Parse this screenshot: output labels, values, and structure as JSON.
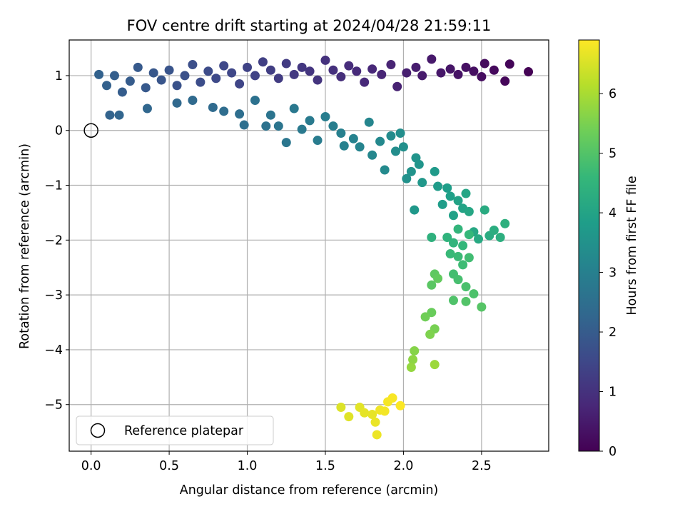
{
  "chart_data": {
    "type": "scatter",
    "title": "FOV centre drift starting at 2024/04/28 21:59:11",
    "xlabel": "Angular distance from reference (arcmin)",
    "ylabel": "Rotation from reference (arcmin)",
    "xlim": [
      -0.14,
      2.93
    ],
    "ylim": [
      -5.85,
      1.65
    ],
    "xticks": [
      0.0,
      0.5,
      1.0,
      1.5,
      2.0,
      2.5
    ],
    "xtick_labels": [
      "0.0",
      "0.5",
      "1.0",
      "1.5",
      "2.0",
      "2.5"
    ],
    "yticks": [
      1,
      0,
      -1,
      -2,
      -3,
      -4,
      -5
    ],
    "ytick_labels": [
      "1",
      "0",
      "−1",
      "−2",
      "−3",
      "−4",
      "−5"
    ],
    "grid": true,
    "legend": {
      "position": "lower-left",
      "entries": [
        "Reference platepar"
      ]
    },
    "reference_point": {
      "x": 0.0,
      "y": 0.0
    },
    "colorbar": {
      "label": "Hours from first FF file",
      "colormap": "viridis",
      "range": [
        0,
        6.9
      ],
      "ticks": [
        0,
        1,
        2,
        3,
        4,
        5,
        6
      ],
      "tick_labels": [
        "0",
        "1",
        "2",
        "3",
        "4",
        "5",
        "6"
      ]
    },
    "colors": {
      "viridis": [
        "#440154",
        "#482878",
        "#3e4989",
        "#31688e",
        "#26828e",
        "#1f9e89",
        "#35b779",
        "#6ece58",
        "#b5de2b",
        "#fde725"
      ]
    },
    "points": [
      {
        "x": 2.8,
        "y": 1.07,
        "t": 0.03
      },
      {
        "x": 2.68,
        "y": 1.21,
        "t": 0.08
      },
      {
        "x": 2.65,
        "y": 0.9,
        "t": 0.12
      },
      {
        "x": 2.58,
        "y": 1.1,
        "t": 0.16
      },
      {
        "x": 2.52,
        "y": 1.22,
        "t": 0.2
      },
      {
        "x": 2.5,
        "y": 0.98,
        "t": 0.24
      },
      {
        "x": 2.45,
        "y": 1.08,
        "t": 0.28
      },
      {
        "x": 2.4,
        "y": 1.15,
        "t": 0.32
      },
      {
        "x": 2.35,
        "y": 1.02,
        "t": 0.36
      },
      {
        "x": 2.3,
        "y": 1.12,
        "t": 0.4
      },
      {
        "x": 2.24,
        "y": 1.05,
        "t": 0.44
      },
      {
        "x": 2.18,
        "y": 1.3,
        "t": 0.48
      },
      {
        "x": 2.12,
        "y": 1.0,
        "t": 0.52
      },
      {
        "x": 2.08,
        "y": 1.15,
        "t": 0.56
      },
      {
        "x": 2.02,
        "y": 1.05,
        "t": 0.6
      },
      {
        "x": 1.96,
        "y": 0.8,
        "t": 0.64
      },
      {
        "x": 1.92,
        "y": 1.2,
        "t": 0.68
      },
      {
        "x": 1.86,
        "y": 1.02,
        "t": 0.72
      },
      {
        "x": 1.8,
        "y": 1.12,
        "t": 0.76
      },
      {
        "x": 1.75,
        "y": 0.88,
        "t": 0.8
      },
      {
        "x": 1.7,
        "y": 1.08,
        "t": 0.84
      },
      {
        "x": 1.65,
        "y": 1.18,
        "t": 0.88
      },
      {
        "x": 1.6,
        "y": 0.98,
        "t": 0.92
      },
      {
        "x": 1.55,
        "y": 1.1,
        "t": 0.96
      },
      {
        "x": 1.5,
        "y": 1.28,
        "t": 1.0
      },
      {
        "x": 1.45,
        "y": 0.92,
        "t": 1.04
      },
      {
        "x": 1.4,
        "y": 1.08,
        "t": 1.08
      },
      {
        "x": 1.35,
        "y": 1.15,
        "t": 1.12
      },
      {
        "x": 1.3,
        "y": 1.02,
        "t": 1.16
      },
      {
        "x": 1.25,
        "y": 1.22,
        "t": 1.2
      },
      {
        "x": 1.2,
        "y": 0.95,
        "t": 1.24
      },
      {
        "x": 1.15,
        "y": 1.1,
        "t": 1.28
      },
      {
        "x": 1.1,
        "y": 1.25,
        "t": 1.32
      },
      {
        "x": 1.05,
        "y": 1.0,
        "t": 1.36
      },
      {
        "x": 1.0,
        "y": 1.15,
        "t": 1.4
      },
      {
        "x": 0.95,
        "y": 0.85,
        "t": 1.44
      },
      {
        "x": 0.9,
        "y": 1.05,
        "t": 1.48
      },
      {
        "x": 0.85,
        "y": 1.18,
        "t": 1.52
      },
      {
        "x": 0.8,
        "y": 0.95,
        "t": 1.56
      },
      {
        "x": 0.75,
        "y": 1.08,
        "t": 1.6
      },
      {
        "x": 0.7,
        "y": 0.88,
        "t": 1.64
      },
      {
        "x": 0.65,
        "y": 1.2,
        "t": 1.68
      },
      {
        "x": 0.6,
        "y": 1.0,
        "t": 1.72
      },
      {
        "x": 0.55,
        "y": 0.82,
        "t": 1.76
      },
      {
        "x": 0.5,
        "y": 1.1,
        "t": 1.8
      },
      {
        "x": 0.45,
        "y": 0.92,
        "t": 1.84
      },
      {
        "x": 0.4,
        "y": 1.05,
        "t": 1.88
      },
      {
        "x": 0.35,
        "y": 0.78,
        "t": 1.92
      },
      {
        "x": 0.3,
        "y": 1.15,
        "t": 1.96
      },
      {
        "x": 0.25,
        "y": 0.9,
        "t": 2.0
      },
      {
        "x": 0.2,
        "y": 0.7,
        "t": 2.04
      },
      {
        "x": 0.15,
        "y": 1.0,
        "t": 2.08
      },
      {
        "x": 0.1,
        "y": 0.82,
        "t": 2.12
      },
      {
        "x": 0.05,
        "y": 1.02,
        "t": 2.16
      },
      {
        "x": 0.12,
        "y": 0.28,
        "t": 2.2
      },
      {
        "x": 0.18,
        "y": 0.28,
        "t": 2.24
      },
      {
        "x": 0.36,
        "y": 0.4,
        "t": 2.28
      },
      {
        "x": 0.55,
        "y": 0.5,
        "t": 2.32
      },
      {
        "x": 0.65,
        "y": 0.55,
        "t": 2.36
      },
      {
        "x": 0.78,
        "y": 0.42,
        "t": 2.4
      },
      {
        "x": 0.85,
        "y": 0.35,
        "t": 2.44
      },
      {
        "x": 0.95,
        "y": 0.3,
        "t": 2.48
      },
      {
        "x": 0.98,
        "y": 0.1,
        "t": 2.52
      },
      {
        "x": 1.05,
        "y": 0.55,
        "t": 2.56
      },
      {
        "x": 1.12,
        "y": 0.08,
        "t": 2.6
      },
      {
        "x": 1.15,
        "y": 0.28,
        "t": 2.64
      },
      {
        "x": 1.2,
        "y": 0.08,
        "t": 2.68
      },
      {
        "x": 1.25,
        "y": -0.22,
        "t": 2.72
      },
      {
        "x": 1.3,
        "y": 0.4,
        "t": 2.76
      },
      {
        "x": 1.35,
        "y": 0.02,
        "t": 2.8
      },
      {
        "x": 1.4,
        "y": 0.18,
        "t": 2.84
      },
      {
        "x": 1.45,
        "y": -0.18,
        "t": 2.88
      },
      {
        "x": 1.5,
        "y": 0.25,
        "t": 2.92
      },
      {
        "x": 1.55,
        "y": 0.08,
        "t": 2.96
      },
      {
        "x": 1.6,
        "y": -0.05,
        "t": 3.0
      },
      {
        "x": 1.62,
        "y": -0.28,
        "t": 3.04
      },
      {
        "x": 1.68,
        "y": -0.15,
        "t": 3.08
      },
      {
        "x": 1.72,
        "y": -0.3,
        "t": 3.12
      },
      {
        "x": 1.78,
        "y": 0.15,
        "t": 3.16
      },
      {
        "x": 1.8,
        "y": -0.45,
        "t": 3.2
      },
      {
        "x": 1.85,
        "y": -0.2,
        "t": 3.24
      },
      {
        "x": 1.88,
        "y": -0.72,
        "t": 3.28
      },
      {
        "x": 1.92,
        "y": -0.1,
        "t": 3.32
      },
      {
        "x": 1.95,
        "y": -0.38,
        "t": 3.36
      },
      {
        "x": 1.98,
        "y": -0.05,
        "t": 3.4
      },
      {
        "x": 2.0,
        "y": -0.3,
        "t": 3.44
      },
      {
        "x": 2.02,
        "y": -0.88,
        "t": 3.48
      },
      {
        "x": 2.05,
        "y": -0.75,
        "t": 3.52
      },
      {
        "x": 2.08,
        "y": -0.5,
        "t": 3.56
      },
      {
        "x": 2.1,
        "y": -0.62,
        "t": 3.6
      },
      {
        "x": 2.12,
        "y": -0.95,
        "t": 3.64
      },
      {
        "x": 2.07,
        "y": -1.45,
        "t": 3.68
      },
      {
        "x": 2.2,
        "y": -0.75,
        "t": 3.72
      },
      {
        "x": 2.22,
        "y": -1.02,
        "t": 3.76
      },
      {
        "x": 2.25,
        "y": -1.35,
        "t": 3.8
      },
      {
        "x": 2.28,
        "y": -1.05,
        "t": 3.84
      },
      {
        "x": 2.3,
        "y": -1.2,
        "t": 3.88
      },
      {
        "x": 2.32,
        "y": -1.55,
        "t": 3.92
      },
      {
        "x": 2.35,
        "y": -1.28,
        "t": 3.96
      },
      {
        "x": 2.38,
        "y": -1.42,
        "t": 4.0
      },
      {
        "x": 2.4,
        "y": -1.15,
        "t": 4.04
      },
      {
        "x": 2.42,
        "y": -1.48,
        "t": 4.08
      },
      {
        "x": 2.45,
        "y": -1.85,
        "t": 4.12
      },
      {
        "x": 2.48,
        "y": -1.98,
        "t": 4.16
      },
      {
        "x": 2.52,
        "y": -1.45,
        "t": 4.2
      },
      {
        "x": 2.55,
        "y": -1.92,
        "t": 4.24
      },
      {
        "x": 2.58,
        "y": -1.82,
        "t": 4.28
      },
      {
        "x": 2.62,
        "y": -1.95,
        "t": 4.32
      },
      {
        "x": 2.65,
        "y": -1.7,
        "t": 4.36
      },
      {
        "x": 2.18,
        "y": -1.95,
        "t": 4.4
      },
      {
        "x": 2.28,
        "y": -1.95,
        "t": 4.44
      },
      {
        "x": 2.32,
        "y": -2.05,
        "t": 4.48
      },
      {
        "x": 2.35,
        "y": -1.8,
        "t": 4.52
      },
      {
        "x": 2.38,
        "y": -2.1,
        "t": 4.56
      },
      {
        "x": 2.42,
        "y": -1.9,
        "t": 4.6
      },
      {
        "x": 2.3,
        "y": -2.25,
        "t": 4.64
      },
      {
        "x": 2.35,
        "y": -2.3,
        "t": 4.68
      },
      {
        "x": 2.38,
        "y": -2.45,
        "t": 4.72
      },
      {
        "x": 2.42,
        "y": -2.32,
        "t": 4.76
      },
      {
        "x": 2.32,
        "y": -2.62,
        "t": 4.8
      },
      {
        "x": 2.35,
        "y": -2.72,
        "t": 4.84
      },
      {
        "x": 2.4,
        "y": -2.85,
        "t": 4.88
      },
      {
        "x": 2.45,
        "y": -2.98,
        "t": 4.92
      },
      {
        "x": 2.32,
        "y": -3.1,
        "t": 4.96
      },
      {
        "x": 2.4,
        "y": -3.12,
        "t": 5.0
      },
      {
        "x": 2.5,
        "y": -3.22,
        "t": 5.04
      },
      {
        "x": 2.18,
        "y": -2.82,
        "t": 5.1
      },
      {
        "x": 2.2,
        "y": -2.62,
        "t": 5.16
      },
      {
        "x": 2.22,
        "y": -2.7,
        "t": 5.22
      },
      {
        "x": 2.18,
        "y": -3.32,
        "t": 5.3
      },
      {
        "x": 2.14,
        "y": -3.4,
        "t": 5.38
      },
      {
        "x": 2.2,
        "y": -3.62,
        "t": 5.46
      },
      {
        "x": 2.17,
        "y": -3.72,
        "t": 5.54
      },
      {
        "x": 2.07,
        "y": -4.02,
        "t": 5.62
      },
      {
        "x": 2.06,
        "y": -4.18,
        "t": 5.7
      },
      {
        "x": 2.05,
        "y": -4.32,
        "t": 5.78
      },
      {
        "x": 2.2,
        "y": -4.27,
        "t": 5.86
      },
      {
        "x": 1.6,
        "y": -5.05,
        "t": 6.55
      },
      {
        "x": 1.65,
        "y": -5.22,
        "t": 6.58
      },
      {
        "x": 1.72,
        "y": -5.05,
        "t": 6.61
      },
      {
        "x": 1.75,
        "y": -5.15,
        "t": 6.64
      },
      {
        "x": 1.8,
        "y": -5.18,
        "t": 6.67
      },
      {
        "x": 1.82,
        "y": -5.32,
        "t": 6.7
      },
      {
        "x": 1.83,
        "y": -5.55,
        "t": 6.73
      },
      {
        "x": 1.85,
        "y": -5.1,
        "t": 6.76
      },
      {
        "x": 1.88,
        "y": -5.12,
        "t": 6.79
      },
      {
        "x": 1.9,
        "y": -4.95,
        "t": 6.82
      },
      {
        "x": 1.93,
        "y": -4.88,
        "t": 6.85
      },
      {
        "x": 1.98,
        "y": -5.02,
        "t": 6.88
      }
    ]
  }
}
